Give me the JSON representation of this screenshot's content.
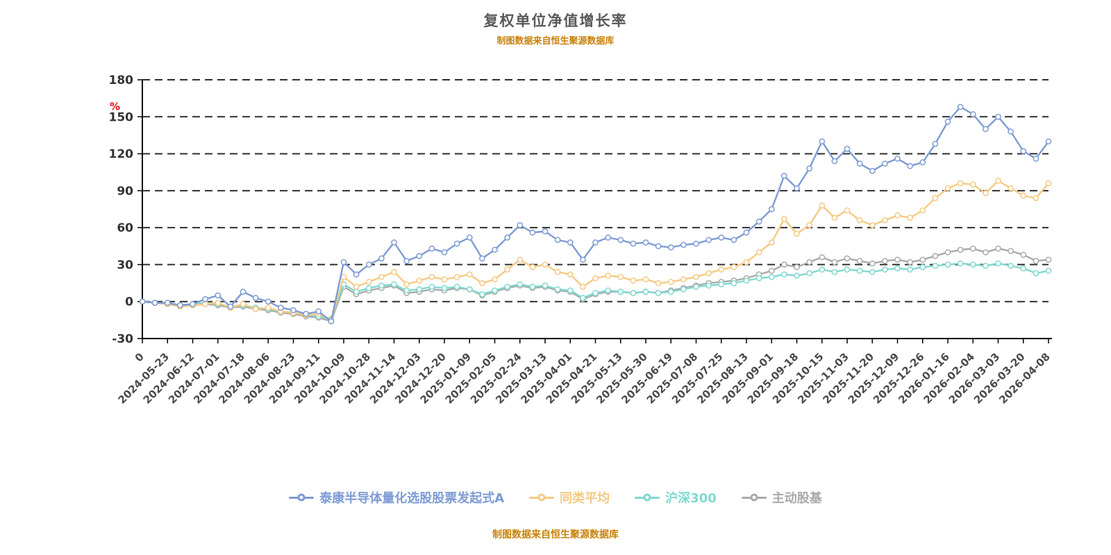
{
  "title": "复权单位净值增长率",
  "subtitle": "制图数据来自恒生聚源数据库",
  "caption": "制图数据来自恒生聚源数据库",
  "colors": {
    "fund": "#7d9bd3",
    "peer": "#f5c982",
    "csi300": "#80d8cf",
    "active": "#a9a9a9",
    "title_text": "#595959",
    "source_text": "#c8820a",
    "unit_label": "#e60000"
  },
  "chart_data": {
    "type": "line",
    "title": "复权单位净值增长率",
    "xlabel": "",
    "ylabel": "%",
    "ylim": [
      -30,
      180
    ],
    "yticks": [
      -30,
      0,
      30,
      60,
      90,
      120,
      150,
      180
    ],
    "grid": "horizontal-dashed",
    "legend_position": "bottom",
    "categories": [
      "0",
      "2024-05-23",
      "2024-06-12",
      "2024-07-01",
      "2024-07-18",
      "2024-08-06",
      "2024-08-23",
      "2024-09-11",
      "2024-10-09",
      "2024-10-28",
      "2024-11-14",
      "2024-12-03",
      "2024-12-20",
      "2025-01-09",
      "2025-02-05",
      "2025-02-24",
      "2025-03-13",
      "2025-04-01",
      "2025-04-21",
      "2025-05-13",
      "2025-05-30",
      "2025-06-19",
      "2025-07-08",
      "2025-07-25",
      "2025-08-13",
      "2025-09-01",
      "2025-09-18",
      "2025-10-15",
      "2025-11-03",
      "2025-11-20",
      "2025-12-09",
      "2025-12-26",
      "2026-01-16",
      "2026-02-04",
      "2026-03-03",
      "2026-03-20",
      "2026-04-08"
    ],
    "points_per_tick": 2,
    "series": [
      {
        "name": "泰康半导体量化选股股票发起式A",
        "color": "#7d9bd3",
        "values": [
          0,
          -1,
          -1,
          -3,
          -2,
          2,
          5,
          -4,
          8,
          3,
          0,
          -5,
          -7,
          -10,
          -8,
          -16,
          32,
          22,
          30,
          35,
          48,
          33,
          37,
          43,
          40,
          47,
          52,
          35,
          42,
          52,
          62,
          56,
          57,
          50,
          48,
          34,
          48,
          52,
          50,
          47,
          48,
          45,
          44,
          46,
          47,
          50,
          52,
          50,
          56,
          65,
          75,
          102,
          92,
          108,
          130,
          114,
          124,
          112,
          106,
          112,
          116,
          110,
          113,
          128,
          146,
          158,
          152,
          140,
          150,
          138,
          122,
          116,
          130
        ]
      },
      {
        "name": "同类平均",
        "color": "#f5c982",
        "values": [
          0,
          -1,
          -2,
          -4,
          -3,
          -2,
          -1,
          -5,
          -2,
          -6,
          -5,
          -8,
          -9,
          -11,
          -10,
          -15,
          20,
          12,
          16,
          20,
          24,
          14,
          17,
          20,
          18,
          20,
          22,
          15,
          18,
          26,
          34,
          28,
          30,
          24,
          22,
          12,
          19,
          21,
          20,
          17,
          18,
          15,
          16,
          18,
          20,
          23,
          26,
          28,
          32,
          40,
          48,
          67,
          55,
          62,
          78,
          68,
          74,
          66,
          62,
          66,
          70,
          68,
          74,
          84,
          92,
          96,
          95,
          88,
          98,
          92,
          86,
          84,
          96
        ]
      },
      {
        "name": "沪深300",
        "color": "#80d8cf",
        "values": [
          0,
          -1,
          -2,
          -3,
          -2,
          -1,
          -2,
          -4,
          -3,
          -5,
          -6,
          -8,
          -9,
          -11,
          -12,
          -14,
          14,
          8,
          11,
          13,
          14,
          9,
          10,
          12,
          11,
          12,
          10,
          6,
          9,
          12,
          14,
          12,
          13,
          10,
          9,
          3,
          7,
          9,
          8,
          7,
          8,
          7,
          8,
          10,
          12,
          13,
          14,
          15,
          17,
          19,
          20,
          22,
          21,
          23,
          26,
          24,
          26,
          25,
          24,
          26,
          27,
          26,
          28,
          29,
          30,
          31,
          30,
          29,
          31,
          29,
          27,
          23,
          25
        ]
      },
      {
        "name": "主动股基",
        "color": "#a9a9a9",
        "values": [
          0,
          -1,
          -2,
          -4,
          -3,
          -2,
          -3,
          -5,
          -4,
          -6,
          -7,
          -9,
          -10,
          -12,
          -13,
          -16,
          12,
          6,
          9,
          11,
          13,
          7,
          8,
          10,
          9,
          11,
          10,
          5,
          8,
          11,
          13,
          11,
          12,
          9,
          8,
          2,
          6,
          8,
          8,
          7,
          8,
          7,
          9,
          11,
          13,
          15,
          16,
          17,
          19,
          22,
          25,
          30,
          28,
          32,
          36,
          32,
          35,
          33,
          31,
          33,
          34,
          32,
          34,
          37,
          40,
          42,
          43,
          40,
          43,
          41,
          38,
          33,
          34
        ]
      }
    ]
  }
}
